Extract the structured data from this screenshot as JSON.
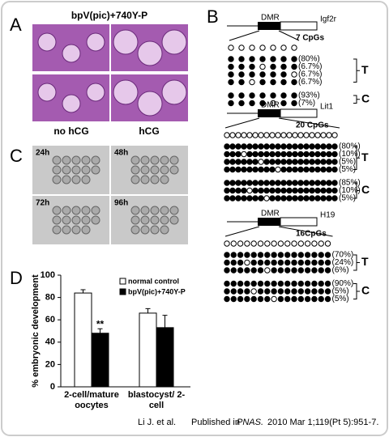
{
  "panel_a": {
    "label": "A",
    "title": "bpV(pic)+740Y-P",
    "captions": [
      "no hCG",
      "hCG"
    ]
  },
  "panel_b": {
    "label": "B",
    "genes": [
      {
        "name": "Igf2r",
        "region": "DMR",
        "cpgs": "7 CpGs",
        "groups": [
          {
            "letter": "T",
            "percents": [
              "(80%)",
              "(6.7%)",
              "(6.7%)",
              "(6.7%)"
            ]
          },
          {
            "letter": "C",
            "percents": [
              "(93%)",
              "(7%)"
            ]
          }
        ]
      },
      {
        "name": "Lit1",
        "region": "DMR",
        "cpgs": "20 CpGs",
        "groups": [
          {
            "letter": "T",
            "percents": [
              "(80%)",
              "(10%)",
              "(5%)",
              "(5%)"
            ]
          },
          {
            "letter": "C",
            "percents": [
              "(85%)",
              "(10%)",
              "(5%)"
            ]
          }
        ]
      },
      {
        "name": "H19",
        "region": "DMR",
        "cpgs": "16CpGs",
        "groups": [
          {
            "letter": "T",
            "percents": [
              "(70%)",
              "(24%)",
              "(6%)"
            ]
          },
          {
            "letter": "C",
            "percents": [
              "(90%)",
              "(5%)",
              "(5%)"
            ]
          }
        ]
      }
    ]
  },
  "panel_c": {
    "label": "C",
    "times": [
      "24h",
      "48h",
      "72h",
      "96h"
    ]
  },
  "panel_d": {
    "label": "D"
  },
  "chart_data": {
    "type": "bar",
    "y_label": "% embryonic development",
    "categories": [
      "2-cell/mature oocytes",
      "blastocyst/ 2-cell"
    ],
    "series": [
      {
        "name": "normal control",
        "color": "#ffffff",
        "values": [
          84,
          66
        ],
        "errors": [
          3,
          4
        ]
      },
      {
        "name": "bpV(pic)+740Y-P",
        "color": "#000000",
        "values": [
          48,
          53
        ],
        "errors": [
          4,
          11
        ]
      }
    ],
    "annotation": "**",
    "ylim": [
      0,
      100
    ],
    "yticks": [
      0,
      20,
      40,
      60,
      80,
      100
    ]
  },
  "citation": {
    "authors": "Li J. et al.",
    "published": "Published in",
    "journal": "PNAS.",
    "details": "2010 Mar 1;119(Pt 5):951-7."
  }
}
